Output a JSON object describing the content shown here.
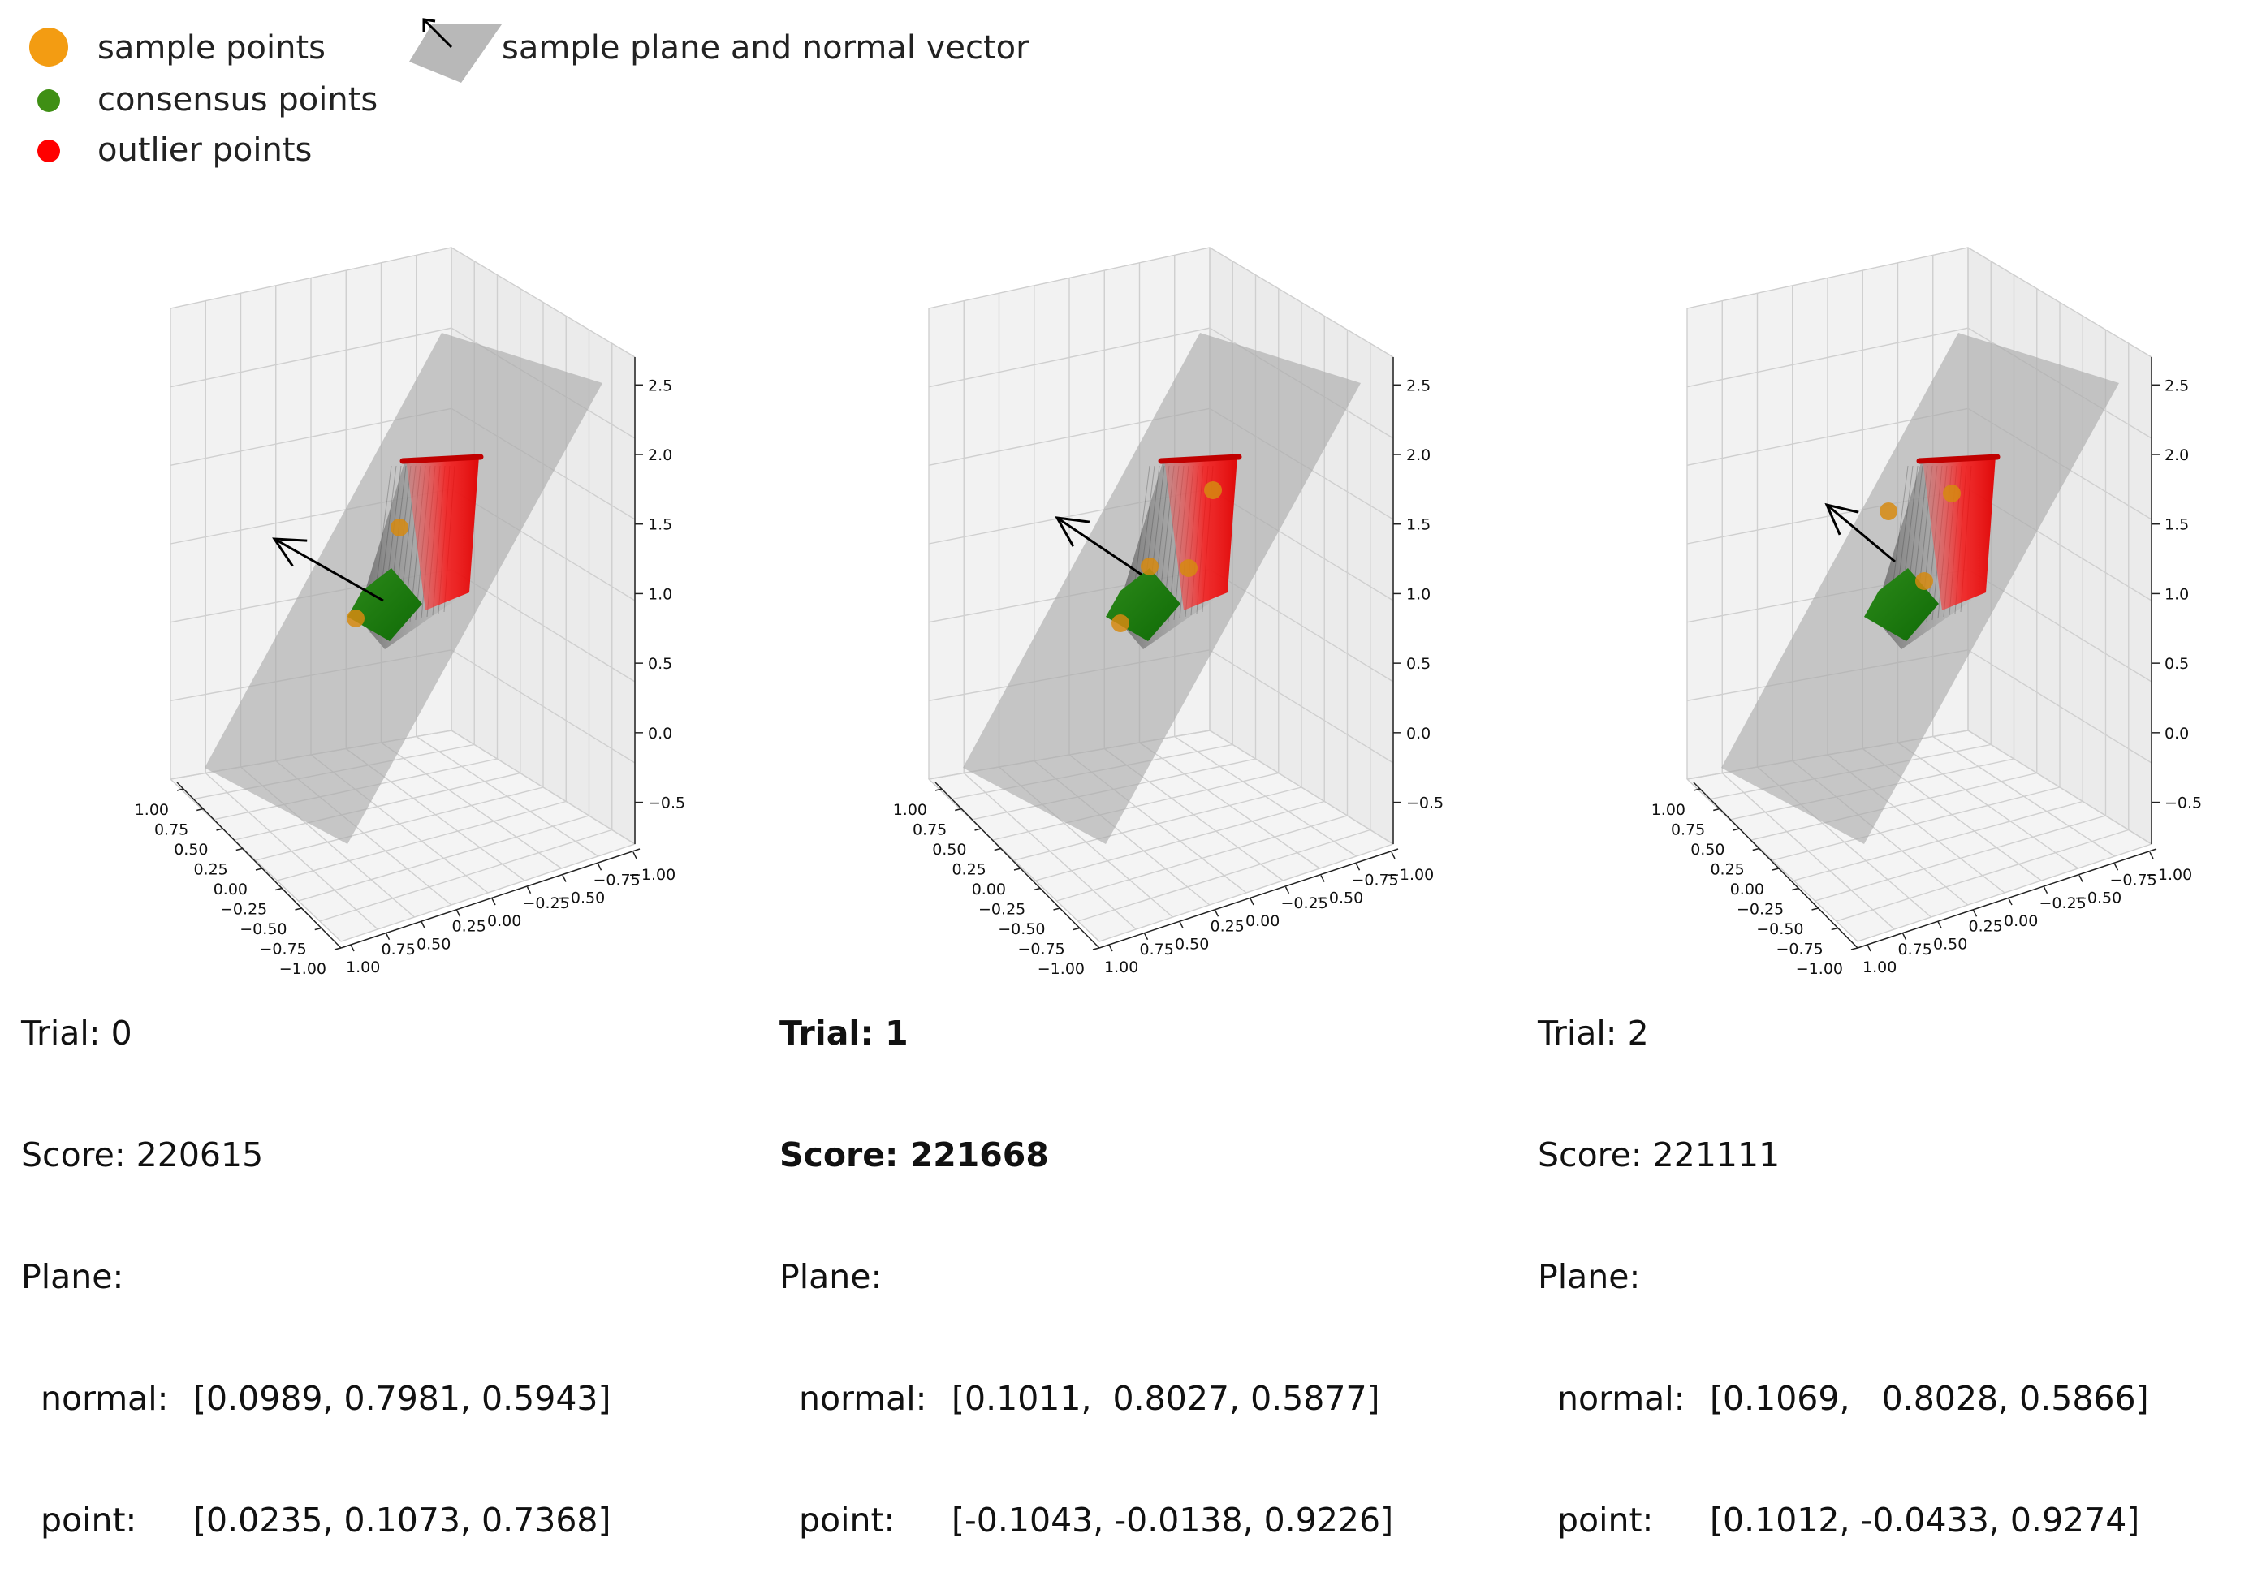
{
  "legend": {
    "sample": "sample points",
    "consensus": "consensus points",
    "outlier": "outlier points",
    "plane": "sample plane and normal vector",
    "colors": {
      "sample": "#f39c12",
      "consensus": "#3f8f14",
      "outlier": "#ff0000",
      "plane": "#b8b8b8"
    }
  },
  "axis_ticks": {
    "z": [
      "2.5",
      "2.0",
      "1.5",
      "1.0",
      "0.5",
      "0.0",
      "−0.5"
    ],
    "left": [
      "1.00",
      "0.75",
      "0.50",
      "0.25",
      "0.00",
      "−0.25",
      "−0.50",
      "−0.75",
      "−1.00"
    ],
    "right": [
      "1.00",
      "0.75",
      "0.50",
      "0.25",
      "0.00",
      "−0.25",
      "−0.50",
      "−0.75",
      "−1.00"
    ]
  },
  "trials": [
    {
      "trial_label": "Trial: 0",
      "score_label": "Score: 220615",
      "plane_label": "Plane:",
      "normal_label": "normal:",
      "normal_value": "[0.0989, 0.7981, 0.5943]",
      "point_label": "point:",
      "point_value": "[0.0235, 0.1073, 0.7368]",
      "best": false
    },
    {
      "trial_label": "Trial: 1",
      "score_label": "Score: 221668",
      "plane_label": "Plane:",
      "normal_label": "normal:",
      "normal_value": "[0.1011,  0.8027, 0.5877]",
      "point_label": "point:",
      "point_value": "[-0.1043, -0.0138, 0.9226]",
      "best": true
    },
    {
      "trial_label": "Trial: 2",
      "score_label": "Score: 221111",
      "plane_label": "Plane:",
      "normal_label": "normal:",
      "normal_value": "[0.1069,   0.8028, 0.5866]",
      "point_label": "point:",
      "point_value": "[0.1012, -0.0433, 0.9274]",
      "best": false
    }
  ]
}
